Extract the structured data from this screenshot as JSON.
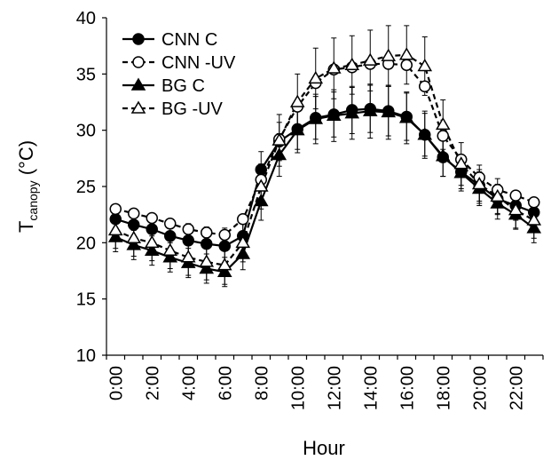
{
  "chart_data": {
    "type": "line",
    "ylabel": {
      "main": "T",
      "sub": "canopy",
      "unit": " (°C)"
    },
    "xlabel": "Hour",
    "ylim": [
      10,
      40
    ],
    "yticks": [
      10,
      15,
      20,
      25,
      30,
      35,
      40
    ],
    "x": [
      0,
      1,
      2,
      3,
      4,
      5,
      6,
      7,
      8,
      9,
      10,
      11,
      12,
      13,
      14,
      15,
      16,
      17,
      18,
      19,
      20,
      21,
      22,
      23
    ],
    "xtick_labels": [
      "0:00",
      "2:00",
      "4:00",
      "6:00",
      "8:00",
      "10:00",
      "12:00",
      "14:00",
      "16:00",
      "18:00",
      "20:00",
      "22:00"
    ],
    "legend_position": "top-left",
    "series": [
      {
        "name": "CNN C",
        "marker": "circle-filled",
        "line": "solid",
        "values": [
          22.1,
          21.6,
          21.2,
          20.6,
          20.2,
          19.9,
          19.7,
          20.6,
          26.5,
          29.0,
          30.1,
          31.1,
          31.4,
          31.8,
          31.9,
          31.7,
          31.2,
          29.6,
          27.6,
          26.3,
          25.1,
          23.9,
          23.3,
          22.7
        ],
        "errors": [
          1.3,
          1.4,
          1.4,
          1.4,
          1.5,
          1.5,
          1.6,
          1.4,
          1.6,
          1.7,
          1.8,
          1.9,
          2.0,
          2.1,
          2.1,
          2.2,
          2.1,
          1.9,
          1.7,
          1.5,
          1.4,
          1.3,
          1.3,
          1.3
        ]
      },
      {
        "name": "CNN -UV",
        "marker": "circle-open",
        "line": "dashed",
        "values": [
          23.0,
          22.6,
          22.2,
          21.7,
          21.2,
          20.9,
          20.7,
          22.1,
          25.6,
          29.2,
          32.1,
          34.2,
          35.4,
          35.6,
          35.9,
          35.9,
          35.8,
          33.9,
          29.5,
          27.4,
          25.8,
          24.7,
          24.2,
          23.6
        ]
      },
      {
        "name": "BG C",
        "marker": "triangle-filled",
        "line": "solid",
        "values": [
          20.5,
          19.8,
          19.3,
          18.7,
          18.2,
          17.7,
          17.4,
          19.0,
          23.7,
          27.8,
          30.0,
          31.0,
          31.3,
          31.5,
          31.7,
          31.6,
          31.1,
          29.6,
          27.7,
          26.2,
          24.8,
          23.5,
          22.5,
          21.3
        ],
        "errors": [
          1.3,
          1.3,
          1.3,
          1.3,
          1.3,
          1.3,
          1.3,
          1.4,
          1.7,
          1.9,
          2.0,
          2.2,
          2.3,
          2.3,
          2.4,
          2.4,
          2.3,
          2.1,
          1.8,
          1.6,
          1.5,
          1.4,
          1.3,
          1.3
        ]
      },
      {
        "name": "BG -UV",
        "marker": "triangle-open",
        "line": "dashed",
        "values": [
          21.1,
          20.4,
          20.0,
          19.3,
          18.7,
          18.3,
          18.0,
          20.0,
          25.0,
          29.1,
          32.5,
          34.6,
          35.5,
          35.8,
          36.2,
          36.6,
          36.7,
          35.7,
          30.5,
          27.0,
          25.2,
          24.1,
          22.9,
          22.0
        ],
        "errors": [
          1.6,
          1.6,
          1.6,
          1.6,
          1.6,
          1.6,
          1.7,
          1.7,
          2.0,
          2.3,
          2.5,
          2.7,
          2.7,
          2.6,
          2.7,
          2.7,
          2.6,
          2.6,
          2.2,
          1.9,
          1.7,
          1.6,
          1.6,
          1.6
        ]
      }
    ]
  }
}
